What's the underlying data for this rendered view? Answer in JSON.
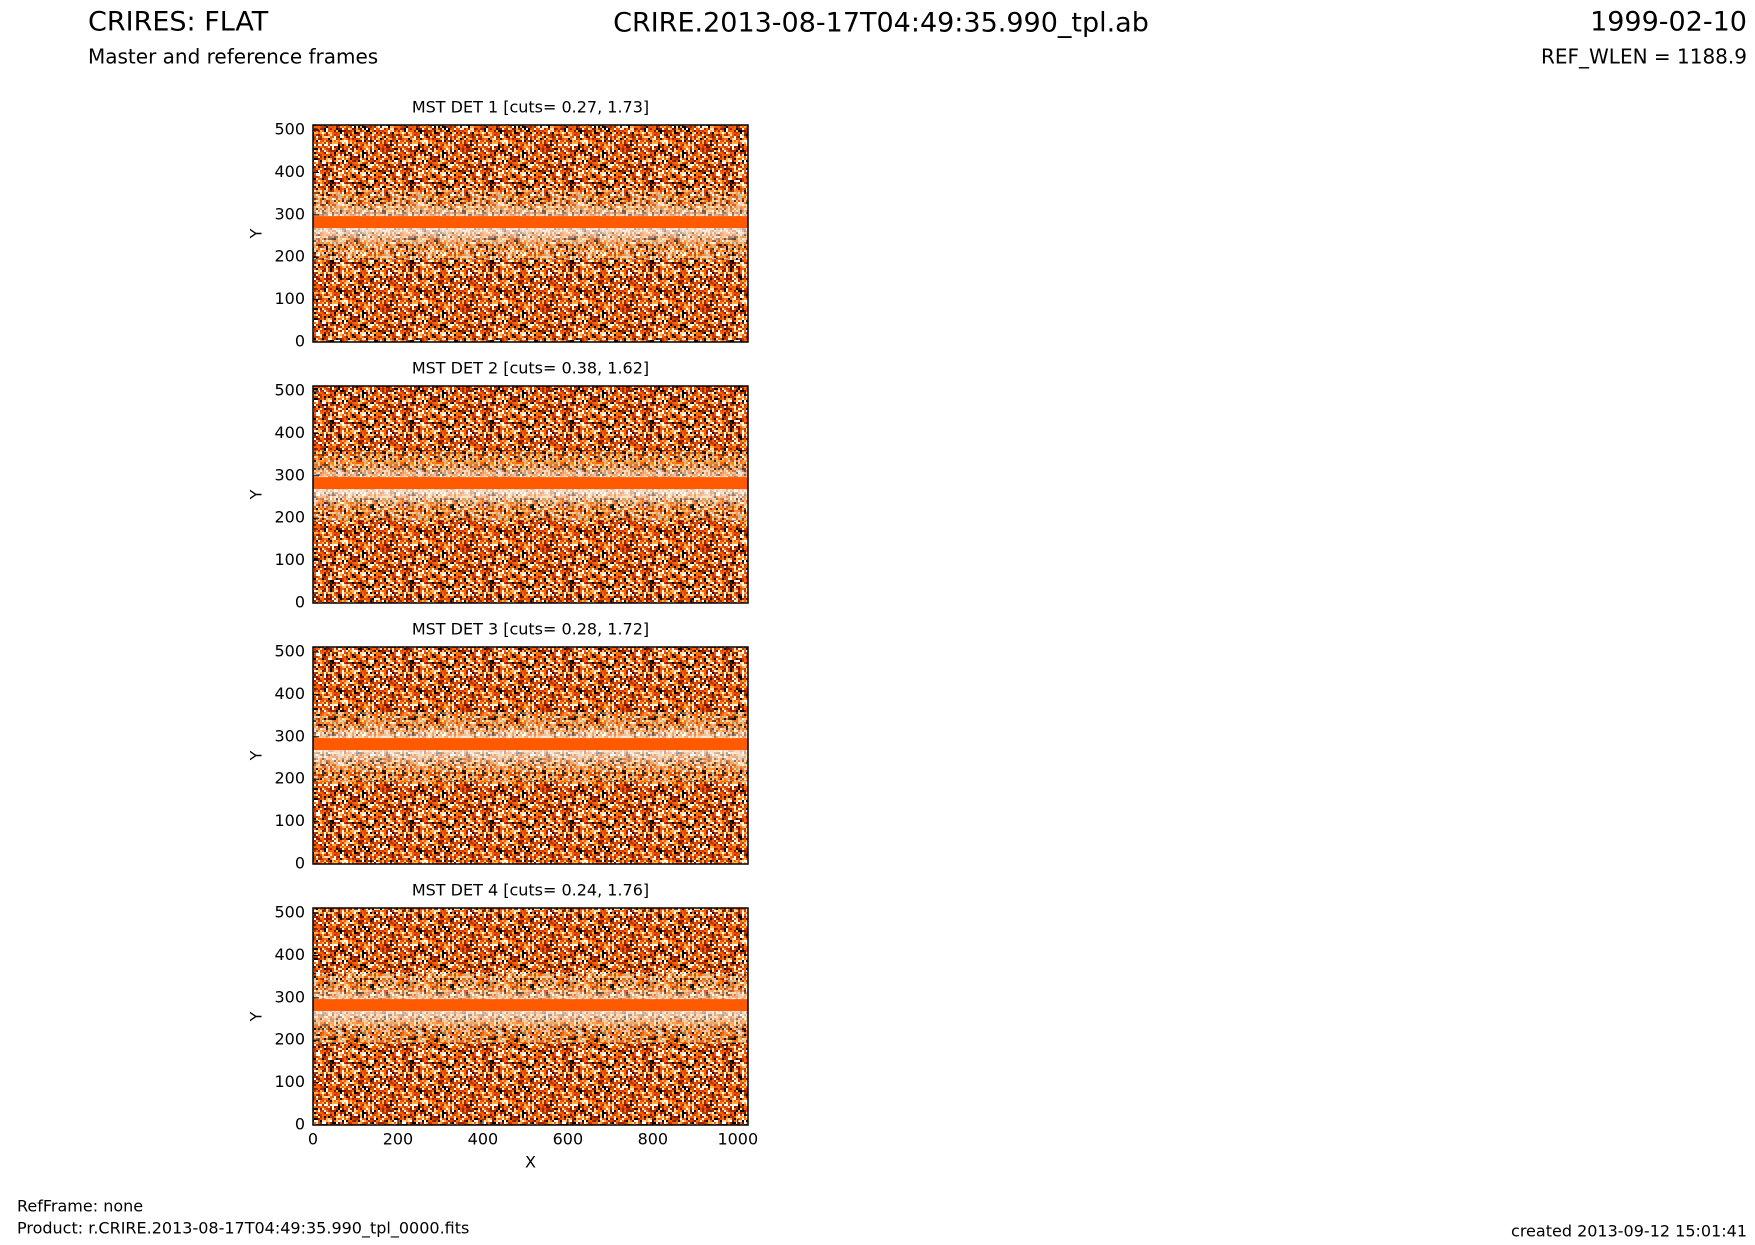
{
  "header": {
    "title": "CRIRES: FLAT",
    "subtitle": "Master and reference frames",
    "file": "CRIRE.2013-08-17T04:49:35.990_tpl.ab",
    "date": "1999-02-10",
    "ref_wlen": "REF_WLEN = 1188.9"
  },
  "footer": {
    "ref_frame": "RefFrame: none",
    "product": "Product: r.CRIRE.2013-08-17T04:49:35.990_tpl_0000.fits",
    "created": "created 2013-09-12 15:01:41"
  },
  "chart_data": [
    {
      "type": "image",
      "title": "MST DET 1 [cuts= 0.27, 1.73]",
      "y_label": "Y",
      "xlim": [
        0,
        1024
      ],
      "ylim": [
        0,
        512
      ],
      "yticks": [
        0,
        100,
        200,
        300,
        400,
        500
      ]
    },
    {
      "type": "image",
      "title": "MST DET 2 [cuts= 0.38, 1.62]",
      "y_label": "Y",
      "xlim": [
        0,
        1024
      ],
      "ylim": [
        0,
        512
      ],
      "yticks": [
        0,
        100,
        200,
        300,
        400,
        500
      ]
    },
    {
      "type": "image",
      "title": "MST DET 3 [cuts= 0.28, 1.72]",
      "y_label": "Y",
      "xlim": [
        0,
        1024
      ],
      "ylim": [
        0,
        512
      ],
      "yticks": [
        0,
        100,
        200,
        300,
        400,
        500
      ]
    },
    {
      "type": "image",
      "title": "MST DET 4 [cuts= 0.24, 1.76]",
      "y_label": "Y",
      "x_label": "X",
      "xlim": [
        0,
        1024
      ],
      "ylim": [
        0,
        512
      ],
      "yticks": [
        0,
        100,
        200,
        300,
        400,
        500
      ],
      "xticks": [
        0,
        200,
        400,
        600,
        800,
        1000
      ]
    }
  ]
}
